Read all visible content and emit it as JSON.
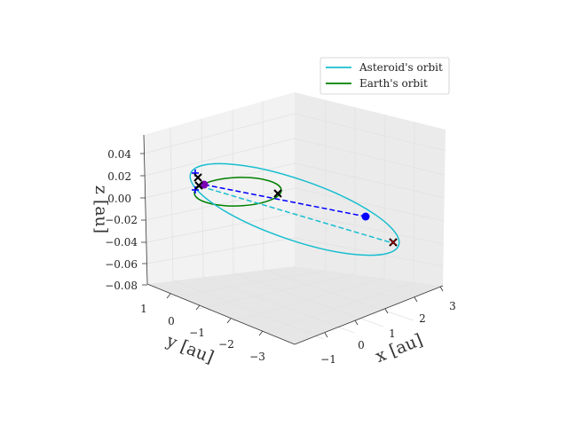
{
  "chart_data": {
    "type": "line3d",
    "legend_placement": "upper-right",
    "grid": true,
    "series": [
      {
        "name": "Asteroid's orbit",
        "color": "#17becf"
      },
      {
        "name": "Earth's orbit",
        "color": "#008000"
      }
    ],
    "axes": {
      "x": {
        "label": "x [au]",
        "ticks": [
          "−1",
          "0",
          "1",
          "2",
          "3"
        ],
        "range": [
          -1.5,
          3.2
        ]
      },
      "y": {
        "label": "y [au]",
        "ticks": [
          "1",
          "0",
          "−1",
          "−2",
          "−3"
        ],
        "range": [
          1.2,
          -3.5
        ]
      },
      "z": {
        "label": "z [au]",
        "ticks": [
          "0.04",
          "0.02",
          "0.00",
          "−0.02",
          "−0.04",
          "−0.06",
          "−0.08"
        ],
        "range": [
          -0.08,
          0.05
        ]
      }
    },
    "markers": {
      "blue_dot": {
        "color": "#0000ff"
      },
      "purple_dot": {
        "color": "#7b00b4"
      },
      "crosses_color": "#000000"
    }
  }
}
